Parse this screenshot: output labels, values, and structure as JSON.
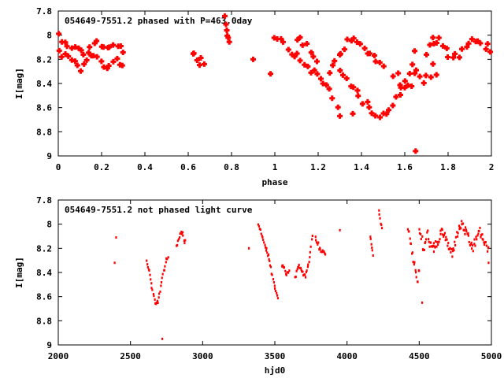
{
  "chart_data": [
    {
      "type": "scatter",
      "title": "054649-7551.2 phased with P=463.0day",
      "xlabel": "phase",
      "ylabel": "I[mag]",
      "xlim": [
        0,
        2
      ],
      "ylim": [
        7.8,
        9
      ],
      "y_inverted": true,
      "grid": false,
      "marker": "filled-plus",
      "color": "#ff0000",
      "xticks": [
        "0",
        "0.2",
        "0.4",
        "0.6",
        "0.8",
        "1",
        "1.2",
        "1.4",
        "1.6",
        "1.8",
        "2"
      ],
      "yticks": [
        "7.8",
        "8",
        "8.2",
        "8.4",
        "8.6",
        "8.8",
        "9"
      ],
      "segments": [
        {
          "x0": 0.0,
          "x1": 0.3,
          "y": [
            8.0,
            8.04,
            8.07,
            8.1,
            8.13,
            8.15,
            8.12,
            8.08,
            8.05,
            8.1,
            8.13,
            8.08,
            8.1,
            8.12
          ],
          "scatter": 0.03
        },
        {
          "x0": 0.0,
          "x1": 0.3,
          "y": [
            8.14,
            8.17,
            8.2,
            8.22,
            8.26,
            8.28,
            8.22,
            8.18,
            8.2,
            8.24,
            8.27,
            8.22,
            8.2,
            8.25
          ],
          "scatter": 0.03
        },
        {
          "x0": 0.62,
          "x1": 0.67,
          "y": [
            8.15,
            8.12,
            8.18,
            8.22,
            8.25,
            8.2,
            8.16,
            8.24
          ],
          "scatter": 0.02
        },
        {
          "x0": 0.77,
          "x1": 0.79,
          "y": [
            7.84,
            7.92,
            7.98,
            8.02,
            8.05
          ],
          "scatter": 0.01
        },
        {
          "x0": 1.0,
          "x1": 1.3,
          "y": [
            8.0,
            8.02,
            8.07,
            8.12,
            8.16,
            8.2,
            8.24,
            8.28,
            8.32,
            8.36,
            8.4,
            8.45,
            8.55,
            8.65
          ],
          "scatter": 0.03
        },
        {
          "x0": 1.1,
          "x1": 1.2,
          "y": [
            8.05,
            8.02,
            8.06,
            8.1,
            8.15,
            8.2,
            8.24
          ],
          "scatter": 0.03
        },
        {
          "x0": 1.25,
          "x1": 1.5,
          "y": [
            8.3,
            8.22,
            8.14,
            8.06,
            8.0,
            8.05,
            8.12,
            8.18,
            8.22,
            8.25
          ],
          "scatter": 0.03
        },
        {
          "x0": 1.3,
          "x1": 1.65,
          "y": [
            8.3,
            8.36,
            8.42,
            8.48,
            8.55,
            8.6,
            8.64,
            8.66,
            8.63,
            8.58,
            8.5,
            8.4,
            8.28,
            8.15
          ],
          "scatter": 0.025
        },
        {
          "x0": 1.55,
          "x1": 1.75,
          "y": [
            8.3,
            8.35,
            8.4,
            8.45,
            8.38,
            8.32,
            8.35,
            8.4,
            8.33,
            8.28,
            8.3
          ],
          "scatter": 0.05
        },
        {
          "x0": 1.7,
          "x1": 2.0,
          "y": [
            8.15,
            8.08,
            8.04,
            8.1,
            8.15,
            8.18,
            8.12,
            8.06,
            8.02,
            8.08,
            8.12,
            8.1
          ],
          "scatter": 0.04
        }
      ],
      "points": [
        {
          "x": 0.9,
          "y": 8.2
        },
        {
          "x": 0.98,
          "y": 8.32
        },
        {
          "x": 1.36,
          "y": 8.65
        },
        {
          "x": 1.65,
          "y": 8.96
        },
        {
          "x": 1.73,
          "y": 8.02
        }
      ]
    },
    {
      "type": "scatter",
      "title": "054649-7551.2 not phased light curve",
      "xlabel": "hjd0",
      "ylabel": "I[mag]",
      "xlim": [
        2000,
        5000
      ],
      "ylim": [
        7.8,
        9
      ],
      "y_inverted": true,
      "grid": false,
      "marker": "dot",
      "color": "#ff0000",
      "xticks": [
        "2000",
        "2500",
        "3000",
        "3500",
        "4000",
        "4500",
        "5000"
      ],
      "yticks": [
        "7.8",
        "8",
        "8.2",
        "8.4",
        "8.6",
        "8.8",
        "9"
      ],
      "segments": [
        {
          "x0": 2610,
          "x1": 2690,
          "y": [
            8.3,
            8.35,
            8.4,
            8.47,
            8.54,
            8.6,
            8.64,
            8.66,
            8.64
          ],
          "scatter": 0.015
        },
        {
          "x0": 2690,
          "x1": 2760,
          "y": [
            8.64,
            8.58,
            8.5,
            8.42,
            8.36,
            8.3,
            8.27
          ],
          "scatter": 0.015
        },
        {
          "x0": 2820,
          "x1": 2880,
          "y": [
            8.18,
            8.14,
            8.1,
            8.06,
            8.12,
            8.15
          ],
          "scatter": 0.02
        },
        {
          "x0": 3385,
          "x1": 3440,
          "y": [
            8.0,
            8.04,
            8.08,
            8.12,
            8.17,
            8.2
          ],
          "scatter": 0.01
        },
        {
          "x0": 3440,
          "x1": 3520,
          "y": [
            8.22,
            8.26,
            8.32,
            8.42,
            8.5,
            8.56,
            8.6
          ],
          "scatter": 0.015
        },
        {
          "x0": 3550,
          "x1": 3600,
          "y": [
            8.35,
            8.38,
            8.42,
            8.4
          ],
          "scatter": 0.02
        },
        {
          "x0": 3640,
          "x1": 3760,
          "y": [
            8.44,
            8.4,
            8.36,
            8.34,
            8.38,
            8.42,
            8.44,
            8.38,
            8.3,
            8.2,
            8.1
          ],
          "scatter": 0.02
        },
        {
          "x0": 3780,
          "x1": 3850,
          "y": [
            8.1,
            8.15,
            8.2,
            8.24,
            8.22,
            8.26
          ],
          "scatter": 0.02
        },
        {
          "x0": 4160,
          "x1": 4180,
          "y": [
            8.1,
            8.15,
            8.2,
            8.25
          ],
          "scatter": 0.01
        },
        {
          "x0": 4220,
          "x1": 4240,
          "y": [
            7.88,
            7.94,
            8.0,
            8.04
          ],
          "scatter": 0.01
        },
        {
          "x0": 4420,
          "x1": 4500,
          "y": [
            8.02,
            8.08,
            8.15,
            8.22,
            8.3,
            8.36,
            8.42,
            8.46,
            8.38
          ],
          "scatter": 0.04
        },
        {
          "x0": 4500,
          "x1": 4600,
          "y": [
            8.05,
            8.12,
            8.2,
            8.16,
            8.08,
            8.14,
            8.22,
            8.18
          ],
          "scatter": 0.05
        },
        {
          "x0": 4600,
          "x1": 4980,
          "y": [
            8.22,
            8.16,
            8.1,
            8.06,
            8.12,
            8.2,
            8.24,
            8.16,
            8.06,
            8.0,
            8.04,
            8.1,
            8.16,
            8.2,
            8.12,
            8.06,
            8.1,
            8.18,
            8.22
          ],
          "scatter": 0.04
        }
      ],
      "points": [
        {
          "x": 2390,
          "y": 8.32
        },
        {
          "x": 2400,
          "y": 8.11
        },
        {
          "x": 2720,
          "y": 8.95
        },
        {
          "x": 3320,
          "y": 8.2
        },
        {
          "x": 3550,
          "y": 8.35
        },
        {
          "x": 3950,
          "y": 8.05
        },
        {
          "x": 4520,
          "y": 8.65
        },
        {
          "x": 4980,
          "y": 8.32
        }
      ]
    }
  ]
}
